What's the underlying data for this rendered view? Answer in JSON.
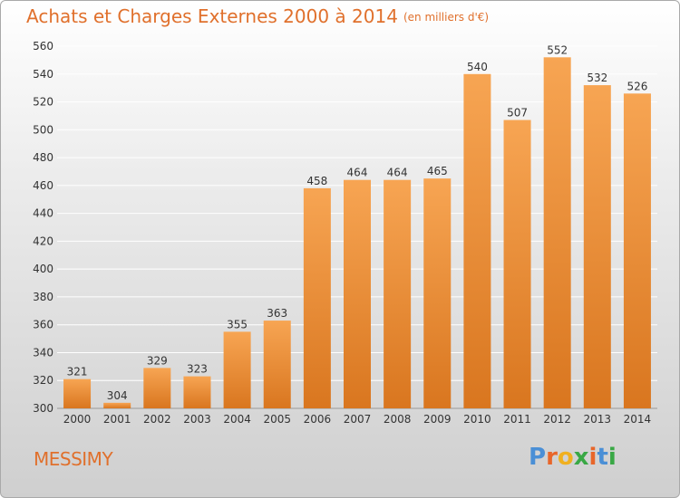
{
  "chart_data": {
    "type": "bar",
    "title": "Achats et Charges Externes 2000 à 2014",
    "subtitle": "(en milliers d'€)",
    "categories": [
      "2000",
      "2001",
      "2002",
      "2003",
      "2004",
      "2005",
      "2006",
      "2007",
      "2008",
      "2009",
      "2010",
      "2011",
      "2012",
      "2013",
      "2014"
    ],
    "values": [
      321,
      304,
      329,
      323,
      355,
      363,
      458,
      464,
      464,
      465,
      540,
      507,
      552,
      532,
      526
    ],
    "ylim": [
      300,
      560
    ],
    "yticks": [
      300,
      320,
      340,
      360,
      380,
      400,
      420,
      440,
      460,
      480,
      500,
      520,
      540,
      560
    ],
    "grid": true,
    "data_labels": true,
    "bar_color": "#f0923a"
  },
  "commune": "MESSIMY",
  "logo": {
    "text": "Proxiti",
    "letter_colors": [
      "#4a8fd6",
      "#e8662a",
      "#f0b020",
      "#39a845",
      "#e8662a",
      "#4a8fd6",
      "#39a845"
    ]
  },
  "colors": {
    "accent": "#e0702c",
    "grid": "#ffffff",
    "text": "#333333"
  }
}
